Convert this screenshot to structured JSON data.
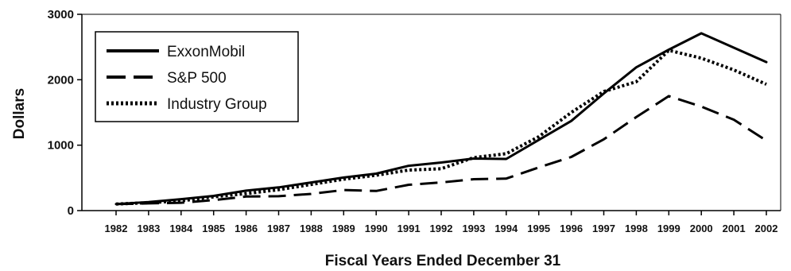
{
  "chart_data": {
    "type": "line",
    "title": "",
    "xlabel": "Fiscal Years Ended December 31",
    "ylabel": "Dollars",
    "ylim": [
      0,
      3000
    ],
    "yticks": [
      0,
      1000,
      2000,
      3000
    ],
    "grid": false,
    "legend_position": "top-left",
    "x": [
      "1982",
      "1983",
      "1984",
      "1985",
      "1986",
      "1987",
      "1988",
      "1989",
      "1990",
      "1991",
      "1992",
      "1993",
      "1994",
      "1995",
      "1996",
      "1997",
      "1998",
      "1999",
      "2000",
      "2001",
      "2002"
    ],
    "series": [
      {
        "name": "ExxonMobil",
        "style": "solid",
        "values": [
          100,
          130,
          175,
          225,
          305,
          355,
          430,
          505,
          565,
          685,
          735,
          795,
          790,
          1080,
          1370,
          1790,
          2190,
          2460,
          2710,
          2490,
          2270
        ]
      },
      {
        "name": "S&P 500",
        "style": "dashed",
        "values": [
          100,
          110,
          120,
          160,
          215,
          220,
          255,
          315,
          300,
          395,
          430,
          480,
          490,
          660,
          820,
          1090,
          1430,
          1750,
          1590,
          1390,
          1070
        ]
      },
      {
        "name": "Industry Group",
        "style": "dotted",
        "values": [
          100,
          120,
          150,
          210,
          260,
          320,
          400,
          480,
          540,
          620,
          640,
          810,
          870,
          1130,
          1500,
          1820,
          1970,
          2450,
          2330,
          2150,
          1930
        ]
      }
    ]
  },
  "colors": {
    "line": "#000000",
    "axis": "#000000",
    "background": "#ffffff"
  }
}
